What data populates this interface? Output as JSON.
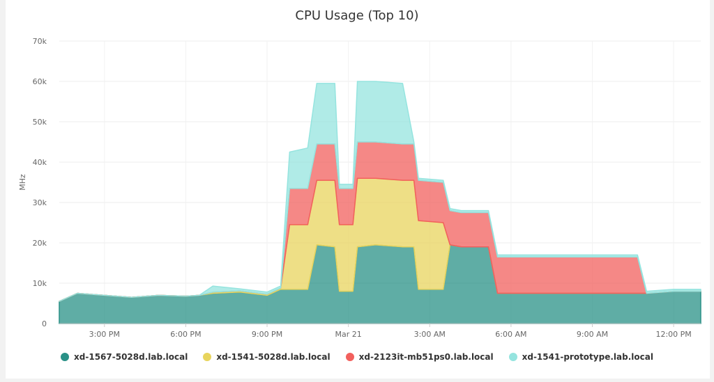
{
  "chart_data": {
    "type": "area",
    "stacked": true,
    "title": "CPU Usage (Top 10)",
    "ylabel": "MHz",
    "xlabel": "",
    "ylim": [
      0,
      70000
    ],
    "yticks": [
      0,
      10000,
      20000,
      30000,
      40000,
      50000,
      60000,
      70000
    ],
    "ytick_labels": [
      "0",
      "10k",
      "20k",
      "30k",
      "40k",
      "50k",
      "60k",
      "70k"
    ],
    "xlim": [
      "2020-03-20T13:20",
      "2020-03-21T13:00"
    ],
    "xticks": [
      "2020-03-20T15:00",
      "2020-03-20T18:00",
      "2020-03-20T21:00",
      "2020-03-21T00:00",
      "2020-03-21T03:00",
      "2020-03-21T06:00",
      "2020-03-21T09:00",
      "2020-03-21T12:00"
    ],
    "xtick_labels": [
      "3:00 PM",
      "6:00 PM",
      "9:00 PM",
      "Mar 21",
      "3:00 AM",
      "6:00 AM",
      "9:00 AM",
      "12:00 PM"
    ],
    "grid": true,
    "legend_position": "bottom",
    "x": [
      "2020-03-20T13:20",
      "2020-03-20T14:00",
      "2020-03-20T15:00",
      "2020-03-20T16:00",
      "2020-03-20T17:00",
      "2020-03-20T18:00",
      "2020-03-20T18:30",
      "2020-03-20T19:00",
      "2020-03-20T20:00",
      "2020-03-20T21:00",
      "2020-03-20T21:30",
      "2020-03-20T21:50",
      "2020-03-20T22:30",
      "2020-03-20T22:50",
      "2020-03-20T23:30",
      "2020-03-20T23:40",
      "2020-03-21T00:10",
      "2020-03-21T00:20",
      "2020-03-21T01:00",
      "2020-03-21T02:00",
      "2020-03-21T02:25",
      "2020-03-21T02:35",
      "2020-03-21T03:30",
      "2020-03-21T03:45",
      "2020-03-21T04:10",
      "2020-03-21T05:00",
      "2020-03-21T05:10",
      "2020-03-21T05:30",
      "2020-03-21T06:00",
      "2020-03-21T08:00",
      "2020-03-21T10:00",
      "2020-03-21T10:20",
      "2020-03-21T10:40",
      "2020-03-21T11:00",
      "2020-03-21T12:00",
      "2020-03-21T13:00"
    ],
    "series": [
      {
        "name": "xd-1567-5028d.lab.local",
        "color": "#2a9187",
        "values": [
          5500,
          7500,
          7000,
          6500,
          7000,
          6800,
          7000,
          7500,
          7800,
          7000,
          8500,
          8500,
          8500,
          19500,
          19000,
          8000,
          8000,
          19000,
          19500,
          19000,
          19000,
          8500,
          8500,
          19500,
          19000,
          19000,
          19000,
          7500,
          7500,
          7500,
          7500,
          7500,
          7500,
          7500,
          8000,
          8000
        ]
      },
      {
        "name": "xd-1541-5028d.lab.local",
        "color": "#e8d45d",
        "values": [
          0,
          0,
          0,
          0,
          0,
          0,
          0,
          300,
          300,
          300,
          300,
          16000,
          16000,
          16000,
          16500,
          16500,
          16500,
          17000,
          16500,
          16500,
          16500,
          17000,
          16500,
          0,
          0,
          0,
          0,
          0,
          0,
          0,
          0,
          0,
          0,
          0,
          0,
          0
        ]
      },
      {
        "name": "xd-2123it-mb51ps0.lab.local",
        "color": "#f2605d",
        "values": [
          0,
          0,
          0,
          0,
          0,
          0,
          0,
          0,
          0,
          0,
          0,
          9000,
          9000,
          9000,
          9000,
          9000,
          9000,
          9000,
          9000,
          9000,
          9000,
          10000,
          10000,
          8500,
          8500,
          8500,
          8500,
          9000,
          9000,
          9000,
          9000,
          9000,
          9000,
          0,
          0,
          0
        ]
      },
      {
        "name": "xd-1541-prototype.lab.local",
        "color": "#95e4df",
        "values": [
          0,
          0,
          0,
          0,
          0,
          0,
          0,
          1500,
          500,
          500,
          500,
          9000,
          10000,
          15000,
          15000,
          1000,
          1000,
          15000,
          15000,
          15000,
          500,
          500,
          500,
          500,
          500,
          500,
          500,
          500,
          500,
          500,
          500,
          500,
          500,
          500,
          500,
          500
        ]
      }
    ]
  }
}
